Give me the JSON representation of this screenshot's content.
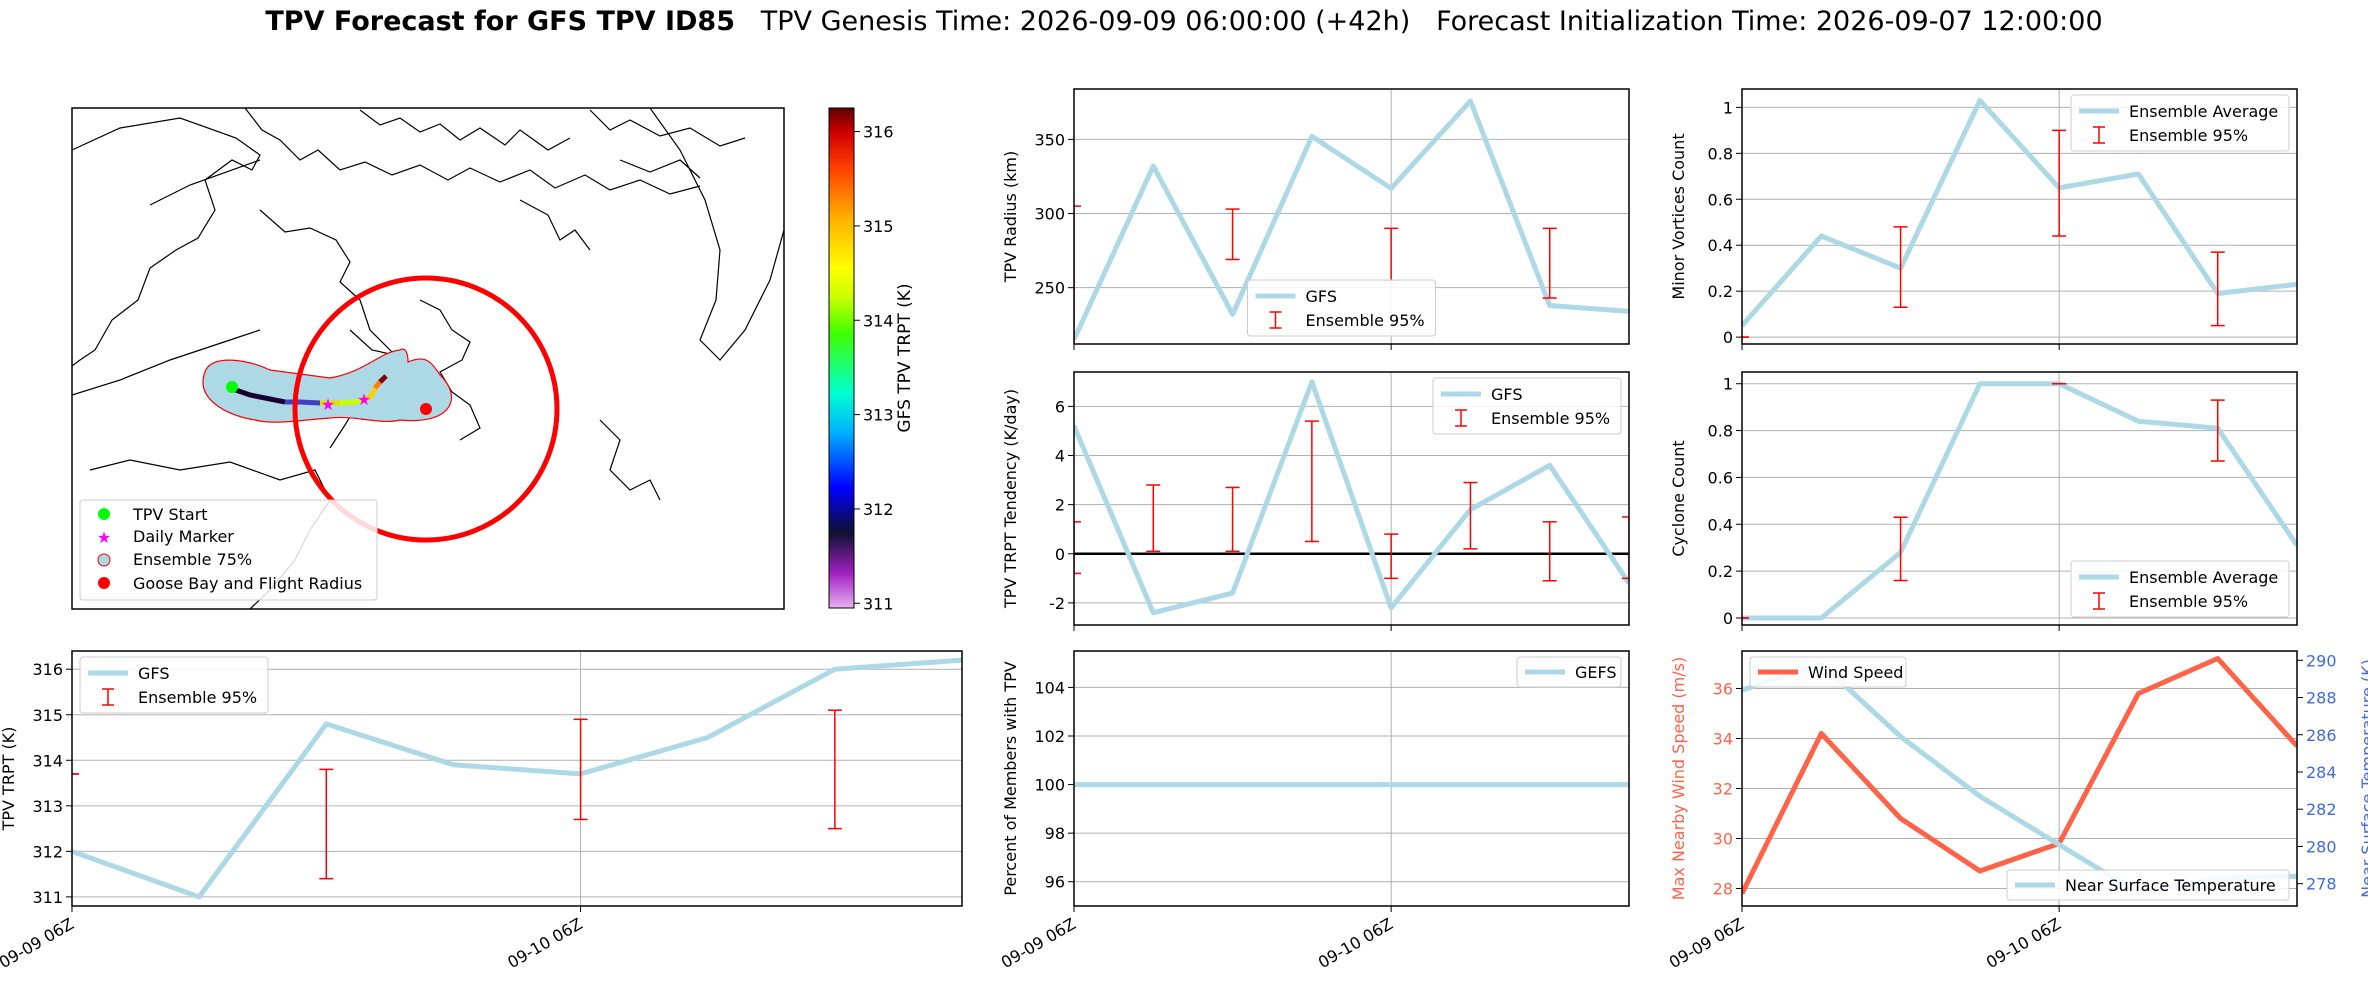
{
  "header": {
    "title_bold": "TPV Forecast for GFS TPV ID85",
    "genesis": "TPV Genesis Time: 2026-09-09 06:00:00 (+42h)",
    "init": "Forecast Initialization Time: 2026-09-07 12:00:00"
  },
  "colors": {
    "line": "#add8e6",
    "err": "#ff0000",
    "wind": "#ff6347",
    "temp_axis": "#4169e1",
    "zero": "#000000"
  },
  "map": {
    "legend": [
      "TPV Start",
      "Daily Marker",
      "Ensemble 75%",
      "Goose Bay and Flight Radius"
    ],
    "legend_marker_colors": [
      "#00ff00",
      "#ff00ff",
      "#add8e6",
      "#ff0000"
    ],
    "colorbar_label": "GFS TPV TRPT (K)",
    "colorbar_ticks": [
      "316",
      "315",
      "314",
      "313",
      "312",
      "311"
    ]
  },
  "x_ticks": [
    "09-09 06Z",
    "09-10 06Z"
  ],
  "chart_data": [
    {
      "id": "radius",
      "type": "line",
      "ylabel": "TPV Radius (km)",
      "xlim": [
        0,
        7
      ],
      "ylim": [
        212,
        384
      ],
      "yticks": [
        250,
        300,
        350
      ],
      "series": [
        {
          "name": "GFS",
          "x": [
            0,
            1,
            2,
            3,
            4,
            5,
            6,
            7
          ],
          "values": [
            215,
            332,
            232,
            352,
            317,
            376,
            238,
            234
          ]
        }
      ],
      "errorbars": {
        "name": "Ensemble 95%",
        "x": [
          0,
          2,
          4,
          6
        ],
        "low": [
          0,
          269,
          255,
          243
        ],
        "high": [
          305,
          303,
          290,
          290
        ]
      },
      "legend": [
        "GFS",
        "Ensemble 95%"
      ],
      "legend_loc": "lower-center"
    },
    {
      "id": "minor",
      "type": "line",
      "ylabel": "Minor Vortices Count",
      "xlim": [
        0,
        7
      ],
      "ylim": [
        -0.03,
        1.08
      ],
      "yticks": [
        0.0,
        0.2,
        0.4,
        0.6,
        0.8,
        1.0
      ],
      "series": [
        {
          "name": "Ensemble Average",
          "x": [
            0,
            1,
            2,
            3,
            4,
            5,
            6,
            7
          ],
          "values": [
            0.05,
            0.44,
            0.3,
            1.03,
            0.65,
            0.71,
            0.19,
            0.23
          ]
        }
      ],
      "errorbars": {
        "name": "Ensemble 95%",
        "x": [
          0,
          2,
          4,
          6
        ],
        "low": [
          0.0,
          0.13,
          0.44,
          0.05
        ],
        "high": [
          0.0,
          0.48,
          0.9,
          0.37
        ]
      },
      "legend": [
        "Ensemble Average",
        "Ensemble 95%"
      ],
      "legend_loc": "upper-right"
    },
    {
      "id": "tendency",
      "type": "line",
      "ylabel": "TPV TRPT Tendency (K/day)",
      "xlim": [
        0,
        7
      ],
      "ylim": [
        -2.9,
        7.4
      ],
      "yticks": [
        -2,
        0,
        2,
        4,
        6
      ],
      "series": [
        {
          "name": "GFS",
          "x": [
            0,
            1,
            2,
            3,
            4,
            5,
            6,
            7
          ],
          "values": [
            5.2,
            -2.4,
            -1.6,
            7.0,
            -2.2,
            1.8,
            3.6,
            -1.2
          ]
        }
      ],
      "errorbars": {
        "name": "Ensemble 95%",
        "x": [
          0,
          1,
          2,
          3,
          4,
          5,
          6,
          7
        ],
        "low": [
          -0.8,
          0.1,
          0.1,
          0.5,
          -1.0,
          0.2,
          -1.1,
          -1.0
        ],
        "high": [
          1.3,
          2.8,
          2.7,
          5.4,
          0.8,
          2.9,
          1.3,
          1.5
        ]
      },
      "hline": 0,
      "legend": [
        "GFS",
        "Ensemble 95%"
      ],
      "legend_loc": "upper-right"
    },
    {
      "id": "cyclone",
      "type": "line",
      "ylabel": "Cyclone Count",
      "xlim": [
        0,
        7
      ],
      "ylim": [
        -0.03,
        1.05
      ],
      "yticks": [
        0.0,
        0.2,
        0.4,
        0.6,
        0.8,
        1.0
      ],
      "series": [
        {
          "name": "Ensemble Average",
          "x": [
            0,
            1,
            2,
            3,
            4,
            5,
            6,
            7
          ],
          "values": [
            0.0,
            0.0,
            0.28,
            1.0,
            1.0,
            0.84,
            0.81,
            0.31
          ]
        }
      ],
      "errorbars": {
        "name": "Ensemble 95%",
        "x": [
          0,
          2,
          4,
          6
        ],
        "low": [
          0.0,
          0.16,
          1.0,
          0.67
        ],
        "high": [
          0.0,
          0.43,
          1.0,
          0.93
        ]
      },
      "legend": [
        "Ensemble Average",
        "Ensemble 95%"
      ],
      "legend_loc": "lower-right"
    },
    {
      "id": "trpt",
      "type": "line",
      "ylabel": "TPV TRPT (K)",
      "xlim": [
        0,
        7
      ],
      "ylim": [
        310.8,
        316.4
      ],
      "yticks": [
        311,
        312,
        313,
        314,
        315,
        316
      ],
      "series": [
        {
          "name": "GFS",
          "x": [
            0,
            1,
            2,
            3,
            4,
            5,
            6,
            7
          ],
          "values": [
            312.0,
            311.0,
            314.8,
            313.9,
            313.7,
            314.5,
            316.0,
            316.2
          ]
        }
      ],
      "errorbars": {
        "name": "Ensemble 95%",
        "x": [
          0,
          2,
          4,
          6
        ],
        "low": [
          313.7,
          311.4,
          312.7,
          312.5
        ],
        "high": [
          313.7,
          313.8,
          314.9,
          315.1
        ]
      },
      "legend": [
        "GFS",
        "Ensemble 95%"
      ],
      "legend_loc": "upper-left"
    },
    {
      "id": "percent",
      "type": "line",
      "ylabel": "Percent of Members with TPV",
      "xlim": [
        0,
        7
      ],
      "ylim": [
        95,
        105.5
      ],
      "yticks": [
        96,
        98,
        100,
        102,
        104
      ],
      "series": [
        {
          "name": "GEFS",
          "x": [
            0,
            7
          ],
          "values": [
            100,
            100
          ]
        }
      ],
      "legend": [
        "GEFS"
      ],
      "legend_loc": "upper-right"
    },
    {
      "id": "wind",
      "type": "line",
      "ylabel": "Max Nearby Wind Speed (m/s)",
      "y2label": "Near Surface Temperature (K)",
      "xlim": [
        0,
        7
      ],
      "ylim": [
        27.3,
        37.5
      ],
      "yticks": [
        28,
        30,
        32,
        34,
        36
      ],
      "y2lim": [
        276.8,
        290.5
      ],
      "y2ticks": [
        278,
        280,
        282,
        284,
        286,
        288,
        290
      ],
      "series": [
        {
          "name": "Wind Speed",
          "axis": "left",
          "x": [
            0,
            1,
            2,
            3,
            4,
            5,
            6,
            7
          ],
          "values": [
            27.8,
            34.2,
            30.8,
            28.7,
            29.8,
            35.8,
            37.2,
            33.7
          ]
        },
        {
          "name": "Near Surface Temperature",
          "axis": "right",
          "x": [
            0,
            1,
            2,
            3,
            4,
            5,
            6,
            7
          ],
          "values": [
            288.4,
            289.8,
            285.9,
            282.7,
            280.1,
            277.5,
            278.3,
            278.4
          ]
        }
      ],
      "legend": [
        "Wind Speed",
        "Near Surface Temperature"
      ]
    }
  ]
}
